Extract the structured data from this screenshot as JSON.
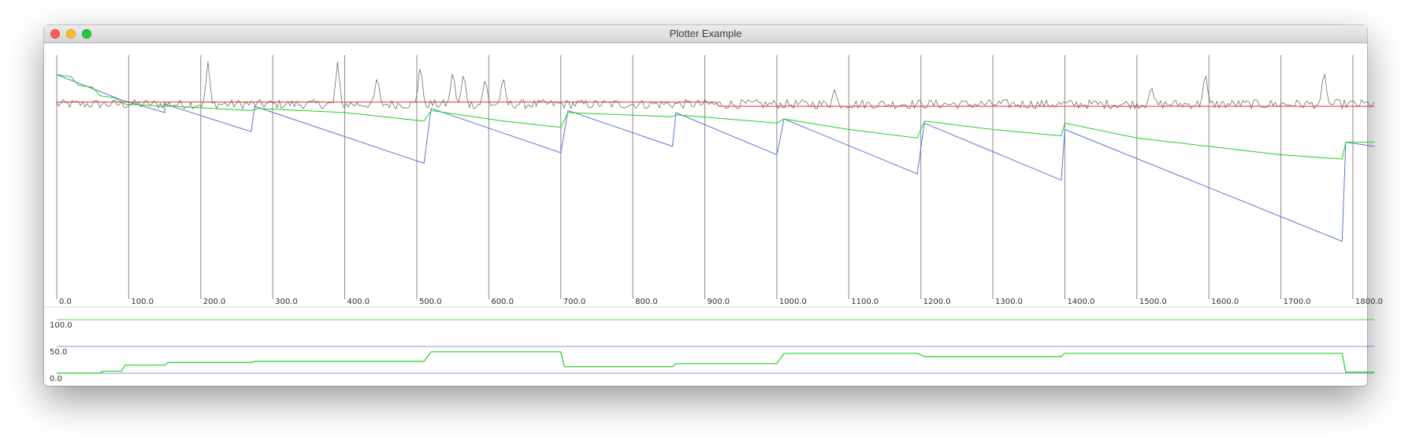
{
  "window": {
    "title": "Plotter Example"
  },
  "colors": {
    "gray": "#6e6e6e",
    "red": "#d23a3a",
    "blue": "#5b74d8",
    "green": "#1fd11f",
    "grid": "#8a8a8a"
  },
  "chart_data": [
    {
      "type": "line",
      "title": "",
      "xlim": [
        0,
        1800
      ],
      "ylim": [
        0,
        100
      ],
      "xticks": [
        "0.0",
        "100.0",
        "200.0",
        "300.0",
        "400.0",
        "500.0",
        "600.0",
        "700.0",
        "800.0",
        "900.0",
        "1000.0",
        "1100.0",
        "1200.0",
        "1300.0",
        "1400.0",
        "1500.0",
        "1600.0",
        "1700.0",
        "1800.0"
      ],
      "grid": "vertical",
      "series": [
        {
          "color": "#5b74d8",
          "points": [
            [
              0,
              90
            ],
            [
              90,
              78
            ],
            [
              150,
              72
            ],
            [
              150,
              76
            ],
            [
              270,
              63
            ],
            [
              275,
              75
            ],
            [
              510,
              48
            ],
            [
              520,
              74
            ],
            [
              700,
              53
            ],
            [
              710,
              73
            ],
            [
              855,
              56
            ],
            [
              860,
              72
            ],
            [
              1000,
              52
            ],
            [
              1010,
              69
            ],
            [
              1195,
              43
            ],
            [
              1205,
              67
            ],
            [
              1395,
              40
            ],
            [
              1400,
              64
            ],
            [
              1785,
              11
            ],
            [
              1790,
              58
            ],
            [
              1830,
              56
            ]
          ]
        },
        {
          "color": "#1fd11f",
          "points": [
            [
              0,
              90
            ],
            [
              20,
              89
            ],
            [
              30,
              85
            ],
            [
              50,
              84
            ],
            [
              60,
              80
            ],
            [
              80,
              79
            ],
            [
              95,
              76
            ],
            [
              150,
              75
            ],
            [
              160,
              75
            ],
            [
              270,
              73
            ],
            [
              280,
              74
            ],
            [
              400,
              72
            ],
            [
              510,
              68
            ],
            [
              520,
              73
            ],
            [
              620,
              68
            ],
            [
              700,
              65
            ],
            [
              710,
              72
            ],
            [
              855,
              70
            ],
            [
              860,
              71
            ],
            [
              1000,
              67
            ],
            [
              1010,
              69
            ],
            [
              1100,
              64
            ],
            [
              1195,
              60
            ],
            [
              1205,
              68
            ],
            [
              1300,
              64
            ],
            [
              1395,
              61
            ],
            [
              1400,
              67
            ],
            [
              1500,
              60
            ],
            [
              1600,
              56
            ],
            [
              1700,
              52
            ],
            [
              1785,
              50
            ],
            [
              1790,
              58
            ],
            [
              1830,
              58
            ]
          ]
        },
        {
          "color": "#d23a3a",
          "points": [
            [
              0,
              77
            ],
            [
              915,
              77
            ],
            [
              920,
              75
            ],
            [
              1830,
              75
            ]
          ]
        }
      ],
      "noise_series": {
        "color": "#6e6e6e",
        "baseline": 76,
        "spikes": [
          [
            210,
            96
          ],
          [
            390,
            96
          ],
          [
            445,
            90
          ],
          [
            505,
            96
          ],
          [
            550,
            93
          ],
          [
            565,
            92
          ],
          [
            595,
            89
          ],
          [
            620,
            90
          ],
          [
            1080,
            83
          ],
          [
            1520,
            85
          ],
          [
            1595,
            92
          ],
          [
            1760,
            93
          ]
        ]
      }
    },
    {
      "type": "line",
      "ylim": [
        0,
        100
      ],
      "yticks": [
        "0.0",
        "50.0",
        "100.0"
      ],
      "series": [
        {
          "color": "#5b74d8",
          "points": [
            [
              0,
              0
            ],
            [
              1830,
              0
            ]
          ]
        },
        {
          "color": "#5b74d8",
          "points": [
            [
              0,
              50
            ],
            [
              1830,
              50
            ]
          ]
        },
        {
          "color": "#1fd11f",
          "points": [
            [
              0,
              100
            ],
            [
              1830,
              100
            ]
          ]
        },
        {
          "color": "#1fd11f",
          "points": [
            [
              0,
              0
            ],
            [
              60,
              0
            ],
            [
              65,
              4
            ],
            [
              90,
              4
            ],
            [
              95,
              15
            ],
            [
              150,
              15
            ],
            [
              155,
              20
            ],
            [
              270,
              20
            ],
            [
              275,
              22
            ],
            [
              510,
              22
            ],
            [
              520,
              40
            ],
            [
              700,
              40
            ],
            [
              705,
              12
            ],
            [
              855,
              12
            ],
            [
              860,
              18
            ],
            [
              1000,
              18
            ],
            [
              1010,
              37
            ],
            [
              1195,
              37
            ],
            [
              1205,
              31
            ],
            [
              1395,
              31
            ],
            [
              1400,
              37
            ],
            [
              1785,
              37
            ],
            [
              1790,
              2
            ],
            [
              1830,
              2
            ]
          ]
        }
      ]
    }
  ]
}
